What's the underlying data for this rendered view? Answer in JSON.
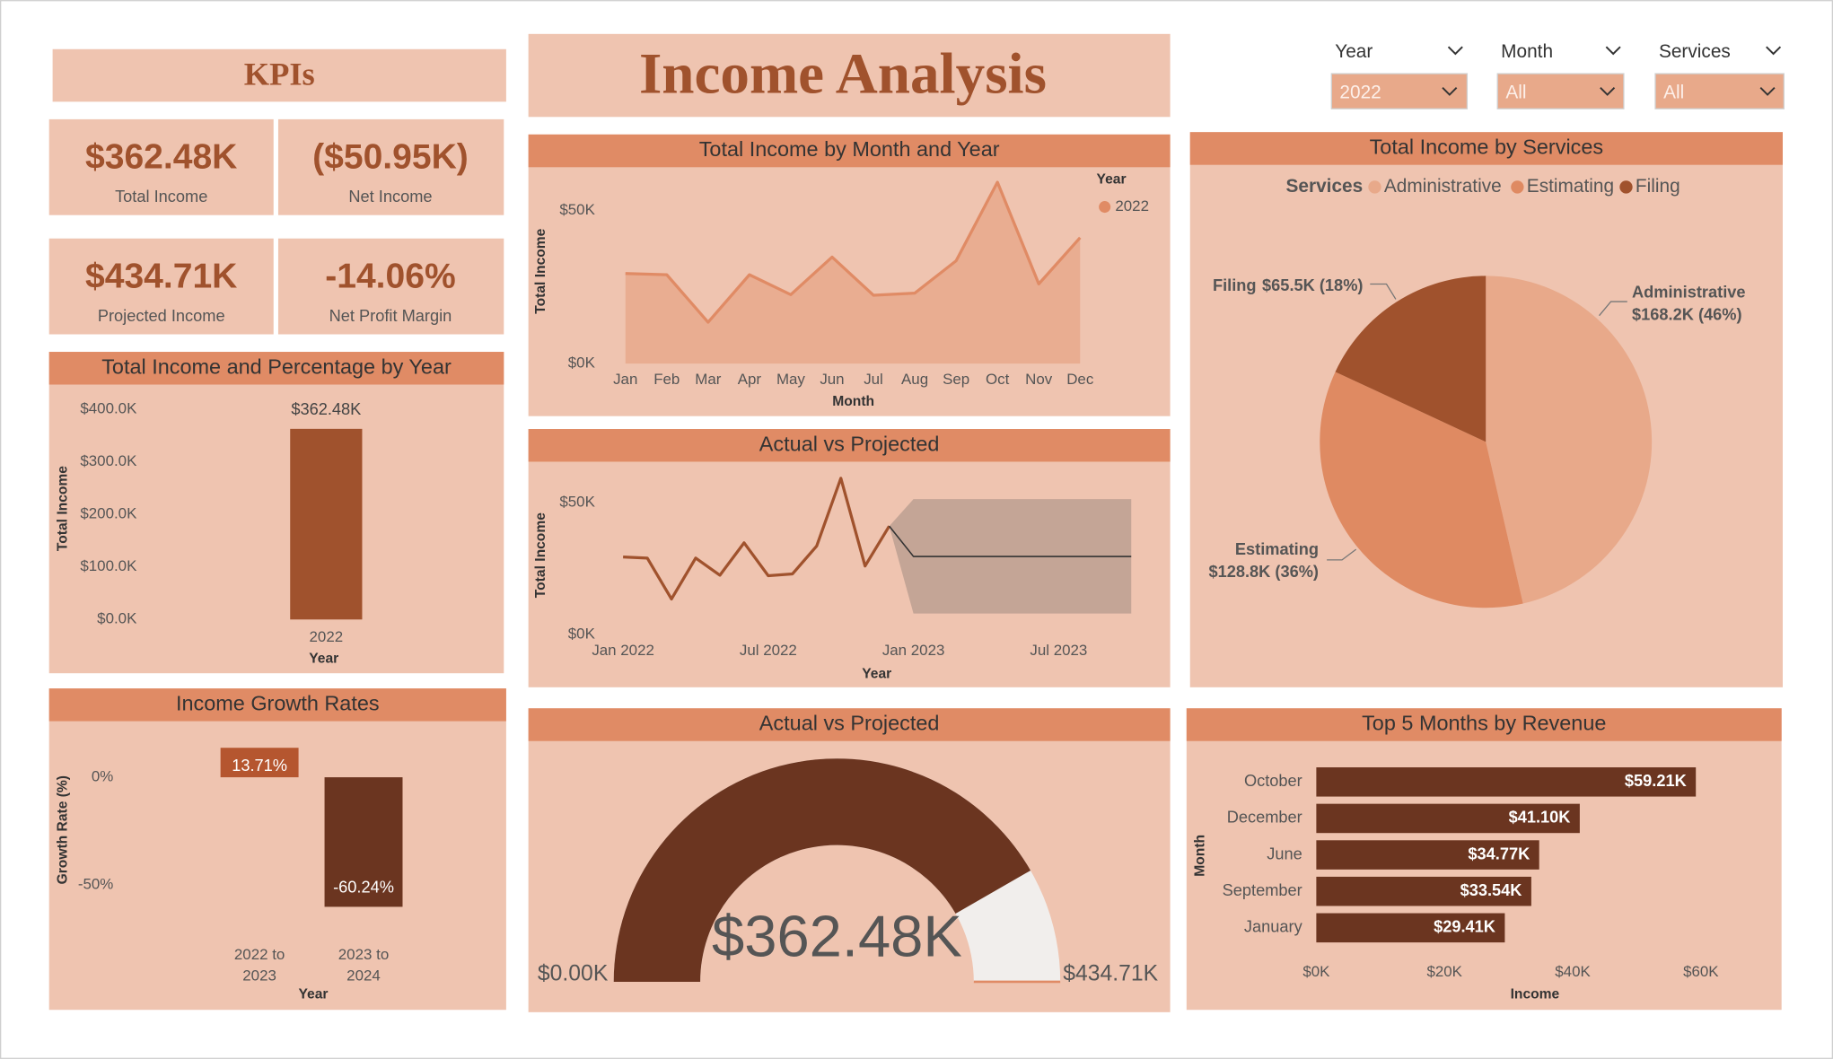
{
  "header": {
    "title": "Income Analysis"
  },
  "kpis": {
    "title": "KPIs",
    "cards": [
      {
        "value": "$362.48K",
        "label": "Total Income"
      },
      {
        "value": "($50.95K)",
        "label": "Net Income"
      },
      {
        "value": "$434.71K",
        "label": "Projected Income"
      },
      {
        "value": "-14.06%",
        "label": "Net Profit Margin"
      }
    ]
  },
  "filters": [
    {
      "label": "Year",
      "value": "2022"
    },
    {
      "label": "Month",
      "value": "All"
    },
    {
      "label": "Services",
      "value": "All"
    }
  ],
  "chart_data": [
    {
      "type": "area",
      "title": "Total Income by Month and Year",
      "x_label": "Month",
      "y_label": "Total Income",
      "legend_title": "Year",
      "categories": [
        "Jan",
        "Feb",
        "Mar",
        "Apr",
        "May",
        "Jun",
        "Jul",
        "Aug",
        "Sep",
        "Oct",
        "Nov",
        "Dec"
      ],
      "series": [
        {
          "name": "2022",
          "color": "#e08b65",
          "values": [
            29410,
            29000,
            13500,
            29000,
            22500,
            34770,
            22300,
            23000,
            33540,
            59210,
            26000,
            41100
          ]
        }
      ],
      "ylim": [
        0,
        62000
      ],
      "yticks": [
        {
          "value": 0,
          "label": "$0K"
        },
        {
          "value": 50000,
          "label": "$50K"
        }
      ]
    },
    {
      "type": "bar",
      "title": "Total Income and Percentage by Year",
      "x_label": "Year",
      "y_label": "Total Income",
      "categories": [
        "2022"
      ],
      "values": [
        362480
      ],
      "value_labels": [
        "$362.48K"
      ],
      "color": "#a0522d",
      "ylim": [
        0,
        400000
      ],
      "yticks": [
        {
          "value": 0,
          "label": "$0.0K"
        },
        {
          "value": 100000,
          "label": "$100.0K"
        },
        {
          "value": 200000,
          "label": "$200.0K"
        },
        {
          "value": 300000,
          "label": "$300.0K"
        },
        {
          "value": 400000,
          "label": "$400.0K"
        }
      ]
    },
    {
      "type": "line",
      "title": "Actual vs Projected",
      "x_label": "Year",
      "y_label": "Total Income",
      "x": [
        "2022-01",
        "2022-02",
        "2022-03",
        "2022-04",
        "2022-05",
        "2022-06",
        "2022-07",
        "2022-08",
        "2022-09",
        "2022-10",
        "2022-11",
        "2022-12",
        "2023-01",
        "2023-02",
        "2023-03",
        "2023-04",
        "2023-05",
        "2023-06",
        "2023-07",
        "2023-08",
        "2023-09",
        "2023-10"
      ],
      "series": [
        {
          "color": "#a0522d",
          "values": [
            29410,
            29000,
            13500,
            29000,
            22500,
            34770,
            22300,
            23000,
            33540,
            59210,
            26000,
            41100,
            null,
            null,
            null,
            null,
            null,
            null,
            null,
            null,
            null,
            null
          ]
        },
        {
          "color": "#333333",
          "band_color": "#c4a596",
          "values": [
            null,
            null,
            null,
            null,
            null,
            null,
            null,
            null,
            null,
            null,
            null,
            41100,
            29600,
            29600,
            29600,
            29600,
            29600,
            29600,
            29600,
            29600,
            29600,
            29600
          ],
          "upper": [
            null,
            null,
            null,
            null,
            null,
            null,
            null,
            null,
            null,
            null,
            null,
            41100,
            51300,
            51300,
            51300,
            51300,
            51300,
            51300,
            51300,
            51300,
            51300,
            51300
          ],
          "lower": [
            null,
            null,
            null,
            null,
            null,
            null,
            null,
            null,
            null,
            null,
            null,
            41100,
            8000,
            8000,
            8000,
            8000,
            8000,
            8000,
            8000,
            8000,
            8000,
            8000
          ]
        }
      ],
      "ylim": [
        0,
        61000
      ],
      "yticks": [
        {
          "value": 0,
          "label": "$0K"
        },
        {
          "value": 50000,
          "label": "$50K"
        }
      ],
      "xticks": [
        {
          "value": "2022-01",
          "label": "Jan 2022"
        },
        {
          "value": "2022-07",
          "label": "Jul 2022"
        },
        {
          "value": "2023-01",
          "label": "Jan 2023"
        },
        {
          "value": "2023-07",
          "label": "Jul 2023"
        }
      ]
    },
    {
      "type": "pie",
      "title": "Total Income by Services",
      "legend_title": "Services",
      "categories": [
        "Administrative",
        "Estimating",
        "Filing"
      ],
      "values": [
        168200,
        128800,
        65500
      ],
      "value_labels": [
        "$168.2K (46%)",
        "$128.8K (36%)",
        "$65.5K (18%)"
      ],
      "colors": [
        "#e8a98a",
        "#df8a62",
        "#a0522d"
      ]
    },
    {
      "type": "bar",
      "title": "Income Growth Rates",
      "x_label": "Year",
      "y_label": "Growth Rate (%)",
      "categories": [
        "2022 to 2023",
        "2023 to 2024"
      ],
      "values": [
        13.71,
        -60.24
      ],
      "value_labels": [
        "13.71%",
        "-60.24%"
      ],
      "colors": [
        "#b5562f",
        "#6b3520"
      ],
      "ylim": [
        -70,
        20
      ],
      "yticks": [
        {
          "value": 0,
          "label": "0%"
        },
        {
          "value": -50,
          "label": "-50%"
        }
      ]
    },
    {
      "type": "gauge",
      "title": "Actual vs Projected",
      "value": 362480,
      "value_label": "$362.48K",
      "min": 0,
      "min_label": "$0.00K",
      "max": 434710,
      "max_label": "$434.71K",
      "target": 434710,
      "color": "#6b3520",
      "track_color": "#f1eeec",
      "target_color": "#e08b65"
    },
    {
      "type": "barh",
      "title": "Top 5 Months by Revenue",
      "x_label": "Income",
      "y_label": "Month",
      "categories": [
        "October",
        "December",
        "June",
        "September",
        "January"
      ],
      "values": [
        59210,
        41100,
        34770,
        33540,
        29410
      ],
      "value_labels": [
        "$59.21K",
        "$41.10K",
        "$34.77K",
        "$33.54K",
        "$29.41K"
      ],
      "color": "#6b3520",
      "xlim": [
        0,
        60000
      ],
      "xticks": [
        {
          "value": 0,
          "label": "$0K"
        },
        {
          "value": 20000,
          "label": "$20K"
        },
        {
          "value": 40000,
          "label": "$40K"
        },
        {
          "value": 60000,
          "label": "$60K"
        }
      ]
    }
  ]
}
